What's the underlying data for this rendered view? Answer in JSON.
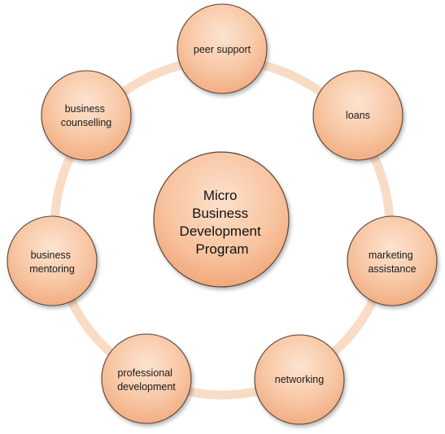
{
  "center": {
    "lines": [
      "Micro",
      "Business",
      "Development",
      "Program"
    ]
  },
  "nodes": [
    {
      "id": "peer-support",
      "lines": [
        "peer support"
      ]
    },
    {
      "id": "loans",
      "lines": [
        "loans"
      ]
    },
    {
      "id": "marketing-assistance",
      "lines": [
        "marketing",
        "assistance"
      ]
    },
    {
      "id": "networking",
      "lines": [
        "networking"
      ]
    },
    {
      "id": "professional-development",
      "lines": [
        "professional",
        "development"
      ]
    },
    {
      "id": "business-mentoring",
      "lines": [
        "business",
        "mentoring"
      ]
    },
    {
      "id": "business-counselling",
      "lines": [
        "business",
        "counselling"
      ]
    }
  ],
  "colors": {
    "ring": "#f9dcc6",
    "node_fill_light": "#fde3d0",
    "node_fill_dark": "#f4b48a",
    "node_stroke": "#5a4434"
  }
}
